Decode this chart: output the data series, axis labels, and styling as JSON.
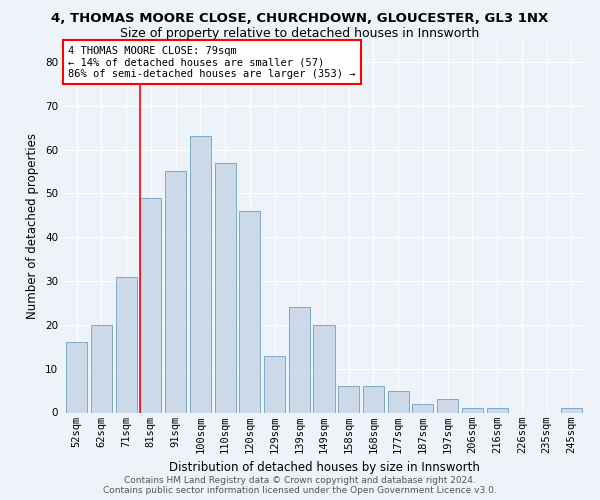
{
  "title": "4, THOMAS MOORE CLOSE, CHURCHDOWN, GLOUCESTER, GL3 1NX",
  "subtitle": "Size of property relative to detached houses in Innsworth",
  "xlabel": "Distribution of detached houses by size in Innsworth",
  "ylabel": "Number of detached properties",
  "bar_labels": [
    "52sqm",
    "62sqm",
    "71sqm",
    "81sqm",
    "91sqm",
    "100sqm",
    "110sqm",
    "120sqm",
    "129sqm",
    "139sqm",
    "149sqm",
    "158sqm",
    "168sqm",
    "177sqm",
    "187sqm",
    "197sqm",
    "206sqm",
    "216sqm",
    "226sqm",
    "235sqm",
    "245sqm"
  ],
  "bar_values": [
    16,
    20,
    31,
    49,
    55,
    63,
    57,
    46,
    13,
    24,
    20,
    6,
    6,
    5,
    2,
    3,
    1,
    1,
    0,
    0,
    1
  ],
  "bar_color": "#ccd9e8",
  "bar_edge_color": "#7aaac8",
  "ylim": [
    0,
    85
  ],
  "yticks": [
    0,
    10,
    20,
    30,
    40,
    50,
    60,
    70,
    80
  ],
  "red_line_x": 2.58,
  "annotation_line1": "4 THOMAS MOORE CLOSE: 79sqm",
  "annotation_line2": "← 14% of detached houses are smaller (57)",
  "annotation_line3": "86% of semi-detached houses are larger (353) →",
  "annotation_box_color": "white",
  "annotation_box_edge": "red",
  "footer_line1": "Contains HM Land Registry data © Crown copyright and database right 2024.",
  "footer_line2": "Contains public sector information licensed under the Open Government Licence v3.0.",
  "bg_color": "#eef2f9",
  "grid_color": "white",
  "title_fontsize": 9.5,
  "subtitle_fontsize": 9,
  "axis_label_fontsize": 8.5,
  "tick_fontsize": 7.5,
  "footer_fontsize": 6.5
}
